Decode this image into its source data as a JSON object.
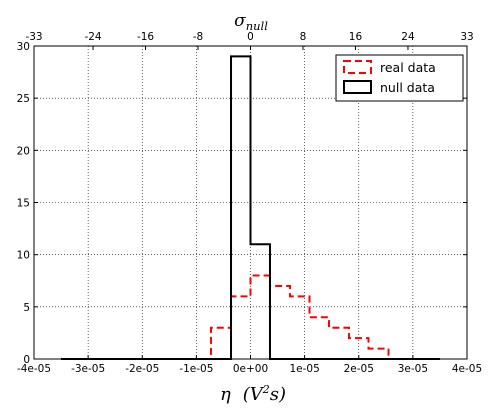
{
  "chart_data": {
    "type": "histogram",
    "xlabel": "η  (V²s)",
    "xlabel_top": "σnull",
    "xlim": [
      -4e-05,
      4e-05
    ],
    "ylim": [
      0,
      30
    ],
    "grid": true,
    "legend_placement": "top-right",
    "x_ticks": [
      -4e-05,
      -3e-05,
      -2e-05,
      -1e-05,
      0,
      1e-05,
      2e-05,
      3e-05,
      4e-05
    ],
    "x_tick_labels": [
      "-4e-05",
      "-3e-05",
      "-2e-05",
      "-1e-05",
      "0e+00",
      "1e-05",
      "2e-05",
      "3e-05",
      "4e-05"
    ],
    "y_ticks": [
      0,
      5,
      10,
      15,
      20,
      25,
      30
    ],
    "y_tick_labels": [
      "0",
      "5",
      "10",
      "15",
      "20",
      "25",
      "30"
    ],
    "top_ticks": [
      -33,
      -24,
      -16,
      -8,
      0,
      8,
      16,
      24,
      33
    ],
    "top_tick_labels": [
      "-33",
      "-24",
      "-16",
      "-8",
      "0",
      "8",
      "16",
      "24",
      "33"
    ],
    "series": [
      {
        "name": "real data",
        "color": "#ff0000",
        "style": "dashed",
        "bin_edges": [
          -3.5e-05,
          -7.3e-06,
          -3.6e-06,
          0,
          3.6e-06,
          7.3e-06,
          1.09e-05,
          1.45e-05,
          1.82e-05,
          2.18e-05,
          2.55e-05
        ],
        "counts": [
          0,
          3,
          6,
          8,
          7,
          6,
          4,
          3,
          2,
          1
        ]
      },
      {
        "name": "null data",
        "color": "#000000",
        "style": "solid",
        "bin_edges": [
          -3.5e-05,
          -3.6e-06,
          0,
          3.6e-06,
          3.5e-05
        ],
        "counts": [
          0,
          29,
          11,
          0
        ]
      }
    ]
  }
}
